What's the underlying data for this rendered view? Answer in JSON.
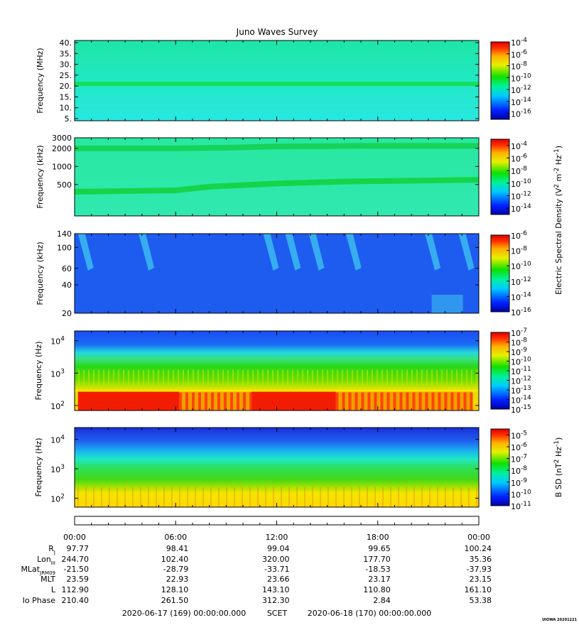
{
  "title": "Juno Waves Survey",
  "footer_stamp": "UIOWA 20201221",
  "chart_data": [
    {
      "type": "heatmap",
      "panel": 1,
      "ylabel": "Frequency (MHz)",
      "yscale": "linear",
      "ylim": [
        4,
        41
      ],
      "yticks": [
        {
          "value": 5,
          "label": "5."
        },
        {
          "value": 10,
          "label": "10."
        },
        {
          "value": 15,
          "label": "15."
        },
        {
          "value": 20,
          "label": "20."
        },
        {
          "value": 25,
          "label": "25."
        },
        {
          "value": 30,
          "label": "30."
        },
        {
          "value": 35,
          "label": "35."
        },
        {
          "value": 40,
          "label": "40."
        }
      ],
      "colorbar": {
        "scale": "log",
        "range_exp": [
          -17,
          -4
        ],
        "ticks": [
          {
            "exp": -4,
            "base": "10",
            "sup": "-4"
          },
          {
            "exp": -6,
            "base": "10",
            "sup": "-6"
          },
          {
            "exp": -8,
            "base": "10",
            "sup": "-8"
          },
          {
            "exp": -10,
            "base": "10",
            "sup": "-10"
          },
          {
            "exp": -12,
            "base": "10",
            "sup": "-12"
          },
          {
            "exp": -14,
            "base": "10",
            "sup": "-14"
          },
          {
            "exp": -16,
            "base": "10",
            "sup": "-16"
          }
        ]
      },
      "background_color": "#22e8c8",
      "features": [
        {
          "kind": "horizontal band",
          "y": 21,
          "color": "#14e056"
        }
      ]
    },
    {
      "type": "heatmap",
      "panel": 2,
      "ylabel": "Frequency (kHz)",
      "yscale": "log",
      "ylim": [
        150,
        3000
      ],
      "yticks": [
        {
          "value": 500,
          "label": "500"
        },
        {
          "value": 1000,
          "label": "1000"
        },
        {
          "value": 2000,
          "label": "2000"
        },
        {
          "value": 3000,
          "label": "3000"
        }
      ],
      "colorbar": {
        "scale": "log",
        "range_exp": [
          -15,
          -3
        ],
        "ticks": [
          {
            "exp": -4,
            "base": "10",
            "sup": "-4"
          },
          {
            "exp": -6,
            "base": "10",
            "sup": "-6"
          },
          {
            "exp": -8,
            "base": "10",
            "sup": "-8"
          },
          {
            "exp": -10,
            "base": "10",
            "sup": "-10"
          },
          {
            "exp": -12,
            "base": "10",
            "sup": "-12"
          },
          {
            "exp": -14,
            "base": "10",
            "sup": "-14"
          }
        ]
      },
      "background_color": "#2ee8a0",
      "features": [
        {
          "kind": "horizontal band",
          "color": "#12d050",
          "time_hours": [
            0,
            6,
            9,
            12,
            18,
            24
          ],
          "y": [
            2000,
            2000,
            2050,
            2150,
            2200,
            2200
          ]
        },
        {
          "kind": "rising band",
          "color": "#14d23e",
          "time_hours": [
            0,
            6,
            8,
            12,
            16,
            20,
            24
          ],
          "y": [
            380,
            400,
            460,
            520,
            560,
            580,
            600
          ]
        }
      ]
    },
    {
      "type": "heatmap",
      "panel": 3,
      "ylabel": "Frequency (kHz)",
      "yscale": "log",
      "ylim": [
        20,
        140
      ],
      "yticks": [
        {
          "value": 20,
          "label": "20"
        },
        {
          "value": 40,
          "label": "40"
        },
        {
          "value": 60,
          "label": "60"
        },
        {
          "value": 100,
          "label": "100"
        },
        {
          "value": 140,
          "label": "140"
        }
      ],
      "colorbar": {
        "scale": "log",
        "range_exp": [
          -16,
          -6
        ],
        "ticks": [
          {
            "exp": -6,
            "base": "10",
            "sup": "-6"
          },
          {
            "exp": -8,
            "base": "10",
            "sup": "-8"
          },
          {
            "exp": -10,
            "base": "10",
            "sup": "-10"
          },
          {
            "exp": -12,
            "base": "10",
            "sup": "-12"
          },
          {
            "exp": -14,
            "base": "10",
            "sup": "-14"
          },
          {
            "exp": -16,
            "base": "10",
            "sup": "-16"
          }
        ]
      },
      "background_color": "#1e5cf0",
      "features": [
        {
          "kind": "bursts",
          "time_hours": [
            0.2,
            3.8,
            11.2,
            12.5,
            13.9,
            16.1,
            20.8,
            22.8
          ],
          "color": "#40d0f0"
        }
      ]
    },
    {
      "type": "heatmap",
      "panel": 4,
      "ylabel": "Frequency (Hz)",
      "yscale": "log",
      "ylim": [
        70,
        20000
      ],
      "yticks": [
        {
          "value": 100,
          "base": "10",
          "sup": "2"
        },
        {
          "value": 1000,
          "base": "10",
          "sup": "3"
        },
        {
          "value": 10000,
          "base": "10",
          "sup": "4"
        }
      ],
      "colorbar": {
        "scale": "log",
        "range_exp": [
          -15,
          -7
        ],
        "ticks": [
          {
            "exp": -7,
            "base": "10",
            "sup": "-7"
          },
          {
            "exp": -8,
            "base": "10",
            "sup": "-8"
          },
          {
            "exp": -9,
            "base": "10",
            "sup": "-9"
          },
          {
            "exp": -10,
            "base": "10",
            "sup": "-10"
          },
          {
            "exp": -11,
            "base": "10",
            "sup": "-11"
          },
          {
            "exp": -12,
            "base": "10",
            "sup": "-12"
          },
          {
            "exp": -13,
            "base": "10",
            "sup": "-13"
          },
          {
            "exp": -14,
            "base": "10",
            "sup": "-14"
          },
          {
            "exp": -15,
            "base": "10",
            "sup": "-15"
          }
        ]
      },
      "features": [
        {
          "kind": "red layer",
          "ymax": 280,
          "time_hours": [
            [
              0.2,
              6.2
            ],
            [
              10.5,
              15.5
            ]
          ]
        },
        {
          "kind": "mixed red/yellow layer",
          "ymax": 280,
          "time_hours": [
            [
              6.2,
              10.5
            ],
            [
              15.5,
              23.6
            ]
          ]
        },
        {
          "kind": "green to cyan transition",
          "y": 3500
        }
      ]
    },
    {
      "type": "heatmap",
      "panel": 5,
      "ylabel": "Frequency (Hz)",
      "yscale": "log",
      "ylim": [
        50,
        25000
      ],
      "yticks": [
        {
          "value": 100,
          "base": "10",
          "sup": "2"
        },
        {
          "value": 1000,
          "base": "10",
          "sup": "3"
        },
        {
          "value": 10000,
          "base": "10",
          "sup": "4"
        }
      ],
      "colorbar": {
        "scale": "log",
        "range_exp": [
          -11,
          -4.5
        ],
        "ticks": [
          {
            "exp": -5,
            "base": "10",
            "sup": "-5"
          },
          {
            "exp": -6,
            "base": "10",
            "sup": "-6"
          },
          {
            "exp": -7,
            "base": "10",
            "sup": "-7"
          },
          {
            "exp": -8,
            "base": "10",
            "sup": "-8"
          },
          {
            "exp": -9,
            "base": "10",
            "sup": "-9"
          },
          {
            "exp": -10,
            "base": "10",
            "sup": "-10"
          },
          {
            "exp": -11,
            "base": "10",
            "sup": "-11"
          }
        ]
      },
      "features": [
        {
          "kind": "blue top",
          "ymin": 8000
        },
        {
          "kind": "yellow bottom",
          "ymax": 200
        }
      ]
    }
  ],
  "colorbar_labels": {
    "electric": {
      "prefix": "Electric Spectral Density (V",
      "sup1": "2",
      "middle": " m",
      "sup2": "-2",
      "middle2": " Hz",
      "sup3": "-1",
      "suffix": ")"
    },
    "magnetic": {
      "prefix": "B SD (nT",
      "sup1": "2",
      "middle": " Hz",
      "sup2": "-1",
      "suffix": ")"
    }
  },
  "time_axis": {
    "range_hours": [
      0,
      24
    ],
    "ticks": [
      {
        "hours": 0,
        "label": "00:00"
      },
      {
        "hours": 6,
        "label": "06:00"
      },
      {
        "hours": 12,
        "label": "12:00"
      },
      {
        "hours": 18,
        "label": "18:00"
      },
      {
        "hours": 24,
        "label": "00:00"
      }
    ]
  },
  "ephemeris": [
    {
      "name": "R",
      "sub": "J",
      "values": [
        "97.77",
        "98.41",
        "99.04",
        "99.65",
        "100.24"
      ]
    },
    {
      "name": "Lon",
      "sub": "III",
      "values": [
        "244.70",
        "102.40",
        "320.00",
        "177.70",
        "35.36"
      ]
    },
    {
      "name": "MLat",
      "sub": "JRM09",
      "values": [
        "-21.50",
        "-28.79",
        "-33.71",
        "-18.53",
        "-37.93"
      ]
    },
    {
      "name": "MLT",
      "sub": "",
      "values": [
        "23.59",
        "22.93",
        "23.66",
        "23.17",
        "23.15"
      ]
    },
    {
      "name": "L",
      "sub": "",
      "values": [
        "112.90",
        "128.10",
        "143.10",
        "110.80",
        "161.10"
      ]
    },
    {
      "name": "Io Phase",
      "sub": "",
      "values": [
        "210.40",
        "261.50",
        "312.30",
        "2.84",
        "53.38"
      ]
    }
  ],
  "date_range": {
    "start": "2020-06-17 (169) 00:00:00.000",
    "label": "SCET",
    "end": "2020-06-18 (170) 00:00:00.000"
  }
}
